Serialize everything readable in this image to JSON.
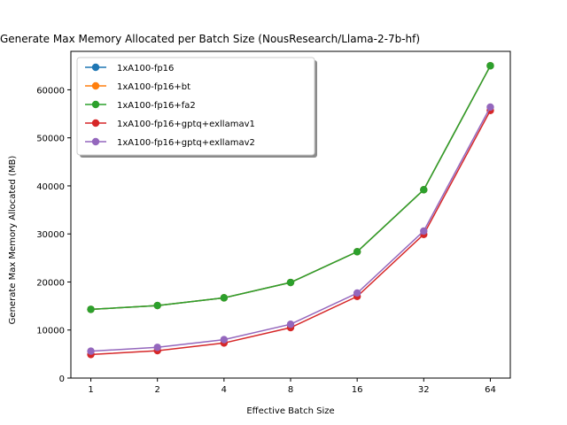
{
  "chart_data": {
    "type": "line",
    "title": "Generate Max Memory Allocated per Batch Size (NousResearch/Llama-2-7b-hf)",
    "xlabel": "Effective Batch Size",
    "ylabel": "Generate Max Memory Allocated (MB)",
    "x_scale": "log2",
    "x": [
      1,
      2,
      4,
      8,
      16,
      32,
      64
    ],
    "x_tick_labels": [
      "1",
      "2",
      "4",
      "8",
      "16",
      "32",
      "64"
    ],
    "ylim": [
      0,
      68000
    ],
    "y_ticks": [
      0,
      10000,
      20000,
      30000,
      40000,
      50000,
      60000
    ],
    "y_tick_labels": [
      "0",
      "10000",
      "20000",
      "30000",
      "40000",
      "50000",
      "60000"
    ],
    "grid": false,
    "legend_position": "upper-left",
    "series": [
      {
        "name": "1xA100-fp16",
        "color": "#1f77b4",
        "values": [
          14300,
          15100,
          16700,
          19900,
          26300,
          39200,
          65000
        ]
      },
      {
        "name": "1xA100-fp16+bt",
        "color": "#ff7f0e",
        "values": [
          14300,
          15100,
          16700,
          19900,
          26300,
          39200,
          65000
        ]
      },
      {
        "name": "1xA100-fp16+fa2",
        "color": "#2ca02c",
        "values": [
          14300,
          15100,
          16700,
          19900,
          26300,
          39200,
          65000
        ]
      },
      {
        "name": "1xA100-fp16+gptq+exllamav1",
        "color": "#d62728",
        "values": [
          4900,
          5700,
          7300,
          10500,
          17000,
          29900,
          55700
        ]
      },
      {
        "name": "1xA100-fp16+gptq+exllamav2",
        "color": "#9467bd",
        "values": [
          5600,
          6400,
          8000,
          11200,
          17700,
          30600,
          56400
        ]
      }
    ]
  }
}
